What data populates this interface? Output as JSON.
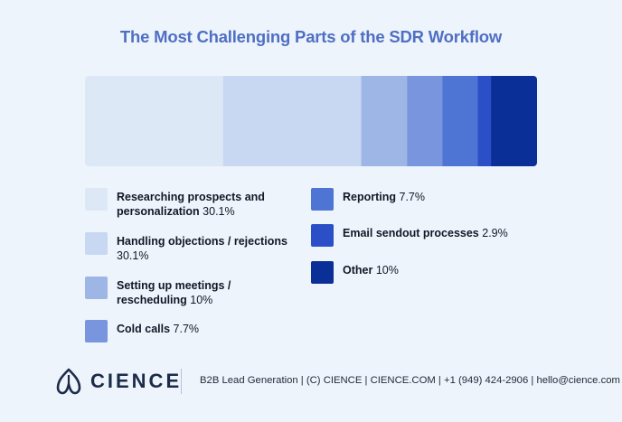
{
  "title": "The Most Challenging Parts of the SDR Workflow",
  "chart_data": {
    "type": "bar",
    "stacked": true,
    "orientation": "horizontal",
    "title": "The Most Challenging Parts of the SDR Workflow",
    "unit": "%",
    "series": [
      {
        "label": "Researching prospects and personalization",
        "value": 30.1,
        "value_text": "30.1%",
        "color": "#dde8f7"
      },
      {
        "label": "Handling objections / rejections",
        "value": 30.1,
        "value_text": "30.1%",
        "color": "#c8d8f2"
      },
      {
        "label": "Setting up meetings / rescheduling",
        "value": 10,
        "value_text": "10%",
        "color": "#9eb6e6"
      },
      {
        "label": "Cold calls",
        "value": 7.7,
        "value_text": "7.7%",
        "color": "#7895de"
      },
      {
        "label": "Reporting",
        "value": 7.7,
        "value_text": "7.7%",
        "color": "#4f75d4"
      },
      {
        "label": "Email sendout processes",
        "value": 2.9,
        "value_text": "2.9%",
        "color": "#2a4fc6"
      },
      {
        "label": "Other",
        "value": 10,
        "value_text": "10%",
        "color": "#0a2f96"
      }
    ]
  },
  "footer": {
    "brand": "CIENCE",
    "info": "B2B Lead Generation | (C) CIENCE | CIENCE.COM | +1 (949) 424-2906 | hello@cience.com",
    "logo_icon": "cience-leaf-logo-icon",
    "brand_color": "#1c2b4a"
  }
}
